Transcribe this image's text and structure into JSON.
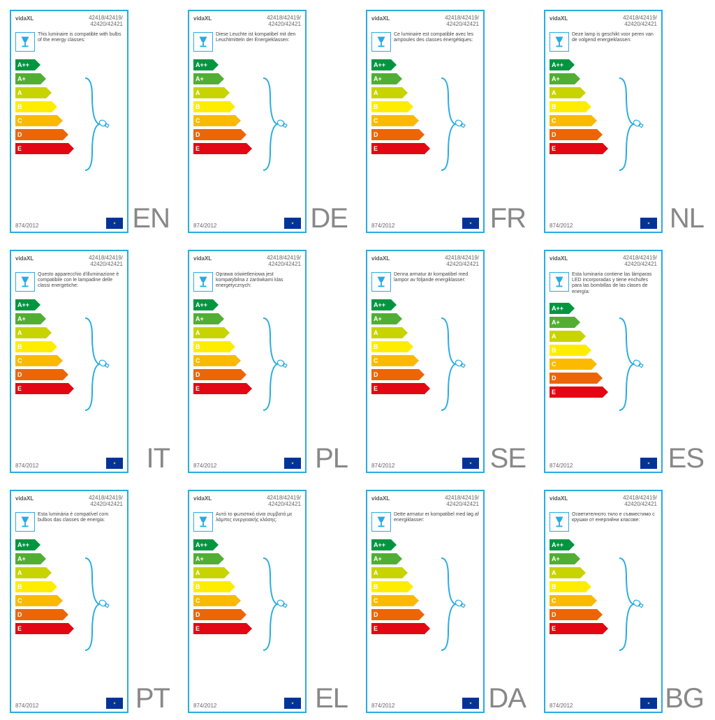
{
  "brand": "vidaXL",
  "product_codes_line1": "42418/42419/",
  "product_codes_line2": "42420/42421",
  "regulation": "874/2012",
  "energy_classes": [
    {
      "label": "A++",
      "color": "#009640",
      "width": 28
    },
    {
      "label": "A+",
      "color": "#52ae32",
      "width": 36
    },
    {
      "label": "A",
      "color": "#c8d400",
      "width": 44
    },
    {
      "label": "B",
      "color": "#ffed00",
      "width": 52
    },
    {
      "label": "C",
      "color": "#fbba00",
      "width": 60
    },
    {
      "label": "D",
      "color": "#ec6608",
      "width": 68
    },
    {
      "label": "E",
      "color": "#e30613",
      "width": 76
    }
  ],
  "cells": [
    {
      "lang": "EN",
      "desc": "This luminaire is compatible with bulbs of the energy classes:"
    },
    {
      "lang": "DE",
      "desc": "Diese Leuchte ist kompatibel mit den Leuchtmitteln der Energieklassen:"
    },
    {
      "lang": "FR",
      "desc": "Ce luminaire est compatible avec les ampoules des classes énergétiques:"
    },
    {
      "lang": "NL",
      "desc": "Deze lamp is geschikt voor peren van de volgend energieklassen:"
    },
    {
      "lang": "IT",
      "desc": "Questo apparecchio d'illuminazione è compatibile con le lampadine delle classi energetiche:"
    },
    {
      "lang": "PL",
      "desc": "Oprawa oświetleniowa jest kompatybilna z żarówkami klas energetycznych:"
    },
    {
      "lang": "SE",
      "desc": "Denna armatur är kompatibel med lampor av följande energiklasser:"
    },
    {
      "lang": "ES",
      "desc": "Esta luminaria contiene las lámparas LED incorporadas y tiene enchufes para las bombillas de las clases de energía:"
    },
    {
      "lang": "PT",
      "desc": "Esta luminária é compatível com bulbos das classes de energia:"
    },
    {
      "lang": "EL",
      "desc": "Αυτό το φωτιστικό είναι συμβατό με λάμπες ενεργειακής κλάσης:"
    },
    {
      "lang": "DA",
      "desc": "Dette armatur er kompatibel med løg af energiklasser:"
    },
    {
      "lang": "BG",
      "desc": "Осветителното тяло е съвместимо с крушки от енергийни класове:"
    }
  ],
  "colors": {
    "border": "#29abe2",
    "text_muted": "#666666",
    "lang_code": "#888888"
  }
}
